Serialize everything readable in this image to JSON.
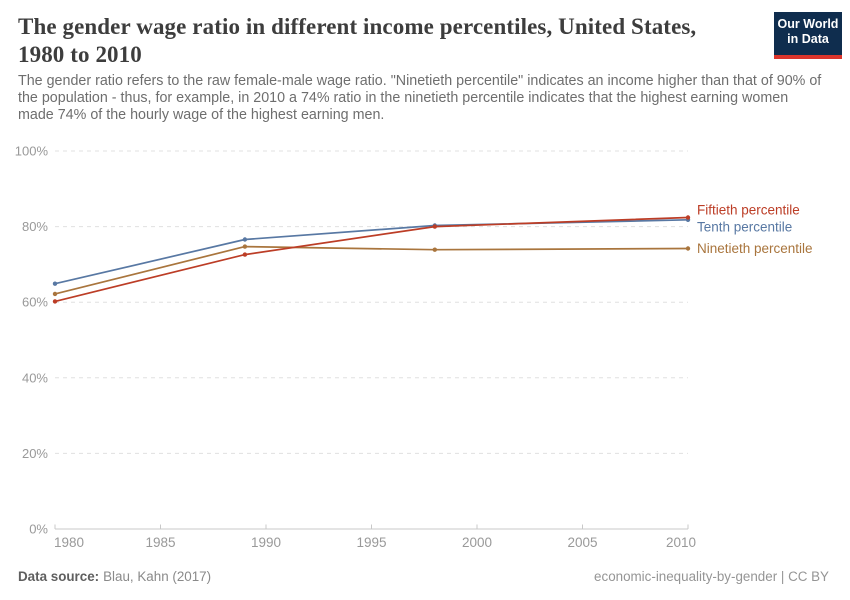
{
  "header": {
    "title_line1": "The gender wage ratio in different income percentiles, United States,",
    "title_line2": "1980 to 2010",
    "subtitle": "The gender ratio refers to the raw female-male wage ratio. \"Ninetieth percentile\" indicates an income higher than that of 90% of the population - thus, for example, in 2010 a 74% ratio in the ninetieth percentile indicates that the highest earning women made 74% of the hourly wage of the highest earning men.",
    "logo": {
      "line1": "Our World",
      "line2": "in Data",
      "bg_color": "#0f2d4e",
      "accent_color": "#dc352c"
    }
  },
  "chart_data": {
    "type": "line",
    "x": [
      1980,
      1989,
      1998,
      2010
    ],
    "series": [
      {
        "name": "Ninetieth percentile",
        "color": "#a9753d",
        "values": [
          62.2,
          74.7,
          73.9,
          74.2
        ]
      },
      {
        "name": "Tenth percentile",
        "color": "#5878a3",
        "values": [
          64.9,
          76.6,
          80.3,
          81.8
        ]
      },
      {
        "name": "Fiftieth percentile",
        "color": "#bc3d26",
        "values": [
          60.2,
          72.6,
          80.0,
          82.4
        ]
      }
    ],
    "xticks": [
      1980,
      1985,
      1990,
      1995,
      2000,
      2005,
      2010
    ],
    "yticks": [
      0,
      20,
      40,
      60,
      80,
      100
    ],
    "ytick_suffix": "%",
    "xlim": [
      1980,
      2010
    ],
    "ylim": [
      0,
      100
    ],
    "grid": true,
    "gridline_style": "dashed",
    "legend_position": "right-of-line-ends"
  },
  "footer": {
    "source_label": "Data source:",
    "source_value": "Blau, Kahn (2017)",
    "right_text": "economic-inequality-by-gender | CC BY"
  }
}
